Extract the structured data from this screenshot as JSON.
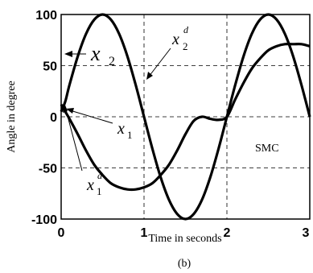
{
  "chart_data": {
    "type": "line",
    "xlabel": "Time in seconds",
    "ylabel": "Angle in degree",
    "xlim": [
      0,
      3
    ],
    "ylim": [
      -100,
      100
    ],
    "x_ticks": [
      "0",
      "1",
      "2",
      "3"
    ],
    "y_ticks": [
      "100",
      "50",
      "0",
      "-50",
      "-100"
    ],
    "grid": true,
    "annotation_text": "SMC",
    "caption": "(b)",
    "series": [
      {
        "name": "x2 / x2d",
        "x": [
          0,
          0.05,
          0.1,
          0.2,
          0.3,
          0.4,
          0.5,
          0.6,
          0.7,
          0.8,
          0.9,
          1.0,
          1.1,
          1.2,
          1.3,
          1.4,
          1.5,
          1.6,
          1.7,
          1.8,
          1.9,
          2.0,
          2.1,
          2.2,
          2.3,
          2.4,
          2.5,
          2.6,
          2.7,
          2.8,
          2.9,
          3.0
        ],
        "values": [
          5,
          15,
          31,
          59,
          81,
          95,
          100,
          95,
          81,
          59,
          31,
          0,
          -31,
          -59,
          -81,
          -95,
          -100,
          -95,
          -81,
          -59,
          -31,
          0,
          31,
          59,
          81,
          95,
          100,
          95,
          81,
          59,
          31,
          0
        ]
      },
      {
        "name": "x1 / x1d",
        "x": [
          0,
          0.05,
          0.1,
          0.2,
          0.3,
          0.4,
          0.5,
          0.6,
          0.7,
          0.8,
          0.9,
          1.0,
          1.1,
          1.2,
          1.3,
          1.4,
          1.5,
          1.6,
          1.7,
          1.8,
          1.9,
          2.0,
          2.1,
          2.2,
          2.3,
          2.4,
          2.5,
          2.6,
          2.7,
          2.8,
          2.9,
          3.0
        ],
        "values": [
          12,
          5,
          -2,
          -17,
          -33,
          -47,
          -57,
          -65,
          -69,
          -71,
          -71,
          -69,
          -65,
          -57,
          -47,
          -33,
          -17,
          -4,
          0,
          -2,
          -3,
          0,
          17,
          33,
          47,
          57,
          65,
          69,
          71,
          71,
          71,
          69
        ]
      }
    ],
    "labels": {
      "x2": "x",
      "x2_sub": "2",
      "x2d": "x",
      "x2d_sub": "2",
      "x2d_sup": "d",
      "x1": "x",
      "x1_sub": "1",
      "x1d": "x",
      "x1d_sub": "1",
      "x1d_sup": "d"
    }
  }
}
